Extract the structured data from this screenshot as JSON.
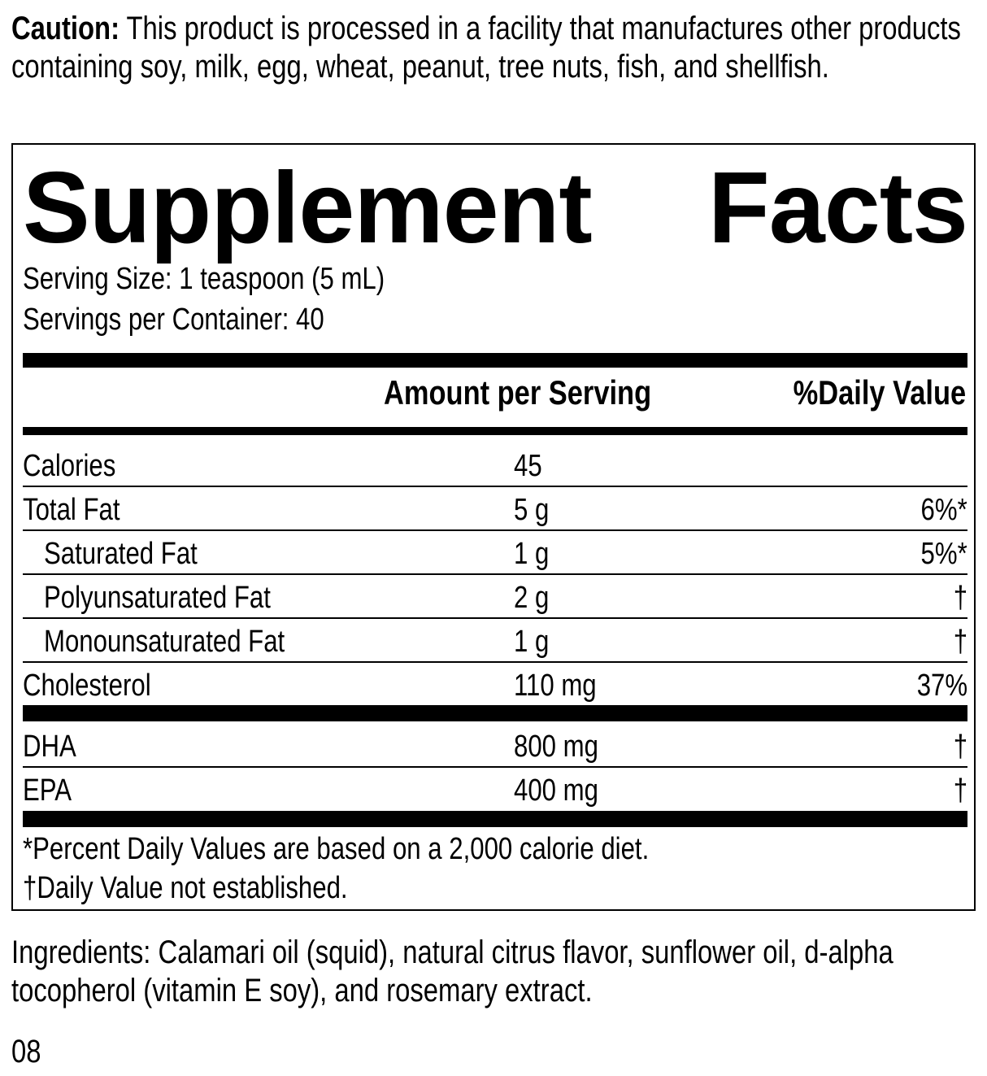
{
  "caution": {
    "label": "Caution:",
    "text": " This product is processed in a facility that manufactures other products containing soy, milk, egg, wheat, peanut, tree nuts, fish, and shellfish."
  },
  "facts": {
    "title": "Supplement Facts",
    "serving_size": "Serving Size: 1 teaspoon (5 mL)",
    "servings_per_container": "Servings per Container: 40",
    "header_amount": "Amount per Serving",
    "header_dv": "%Daily Value",
    "rows": [
      {
        "name": "Calories",
        "amount": "45",
        "dv": ""
      },
      {
        "name": "Total Fat",
        "amount": "5 g",
        "dv": "6%*"
      },
      {
        "name": "Saturated Fat",
        "amount": "1 g",
        "dv": "5%*"
      },
      {
        "name": "Polyunsaturated Fat",
        "amount": "2 g",
        "dv": "†"
      },
      {
        "name": "Monounsaturated Fat",
        "amount": "1 g",
        "dv": "†"
      },
      {
        "name": "Cholesterol",
        "amount": "110 mg",
        "dv": "37%"
      },
      {
        "name": "DHA",
        "amount": "800 mg",
        "dv": "†"
      },
      {
        "name": "EPA",
        "amount": "400 mg",
        "dv": "†"
      }
    ],
    "footnote_1": "*Percent Daily Values are based on a 2,000 calorie diet.",
    "footnote_2": "†Daily Value not established."
  },
  "ingredients": "Ingredients: Calamari oil (squid), natural citrus flavor, sunflower oil, d-alpha tocopherol (vitamin E soy), and rosemary extract.",
  "code": "08"
}
